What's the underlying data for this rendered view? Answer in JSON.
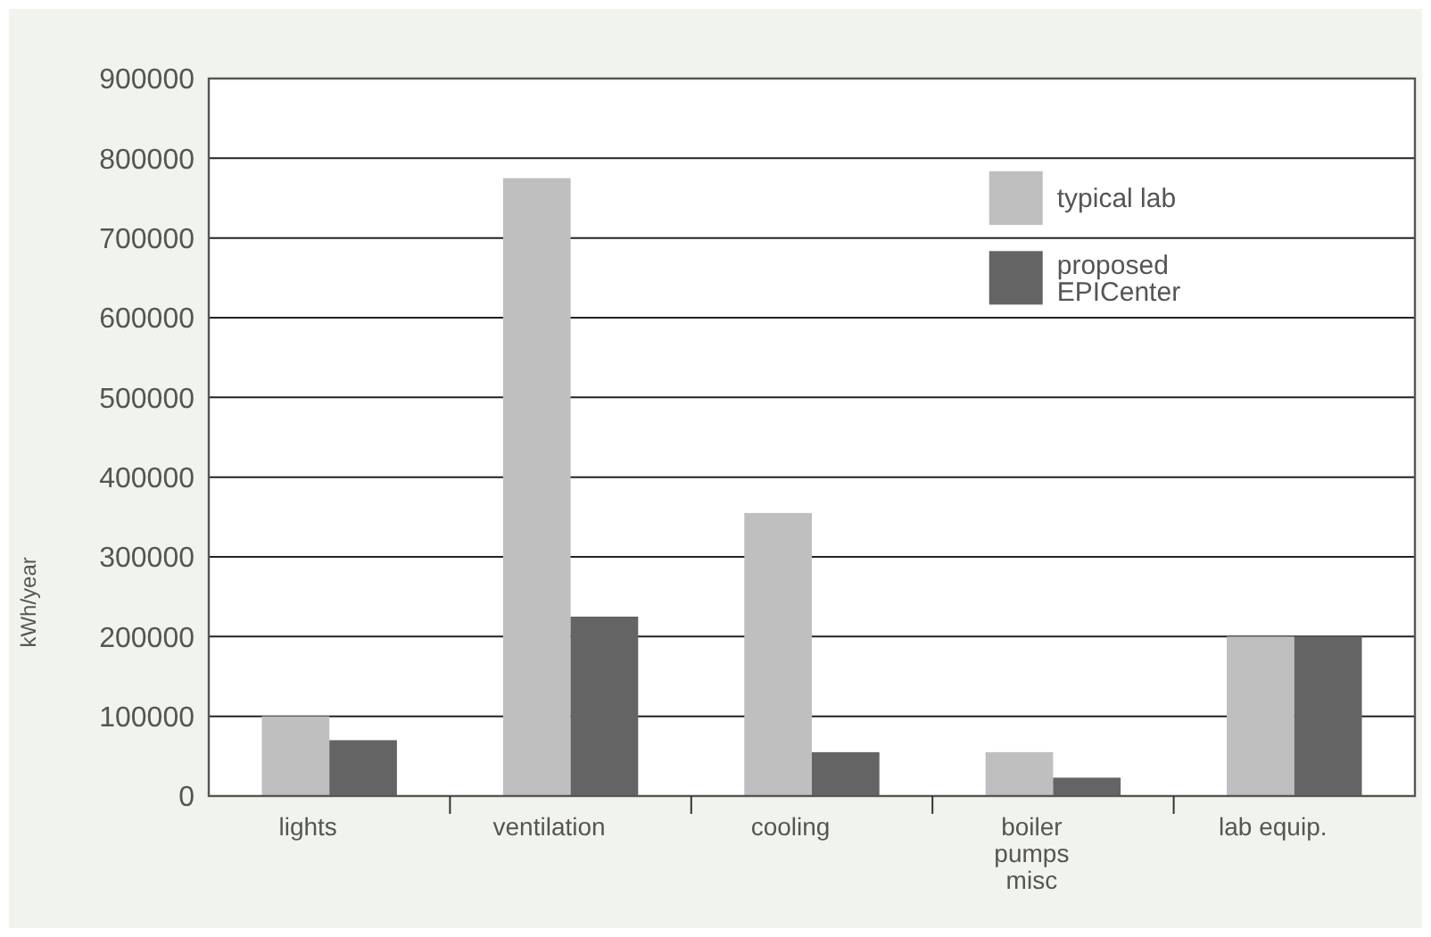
{
  "chart_data": {
    "type": "bar",
    "ylabel": "kWh/year",
    "categories": [
      "lights",
      "ventilation",
      "cooling",
      "boiler\npumps\nmisc",
      "lab equip."
    ],
    "series": [
      {
        "name": "typical lab",
        "color": "#bfbfbf",
        "values": [
          100000,
          775000,
          355000,
          55000,
          200000
        ]
      },
      {
        "name": "proposed\nEPICenter",
        "color": "#646464",
        "values": [
          70000,
          225000,
          55000,
          23000,
          200000
        ]
      }
    ],
    "ylim": [
      0,
      900000
    ],
    "yticks": [
      0,
      100000,
      200000,
      300000,
      400000,
      500000,
      600000,
      700000,
      800000,
      900000
    ],
    "grid": "y",
    "legend": "top right"
  }
}
